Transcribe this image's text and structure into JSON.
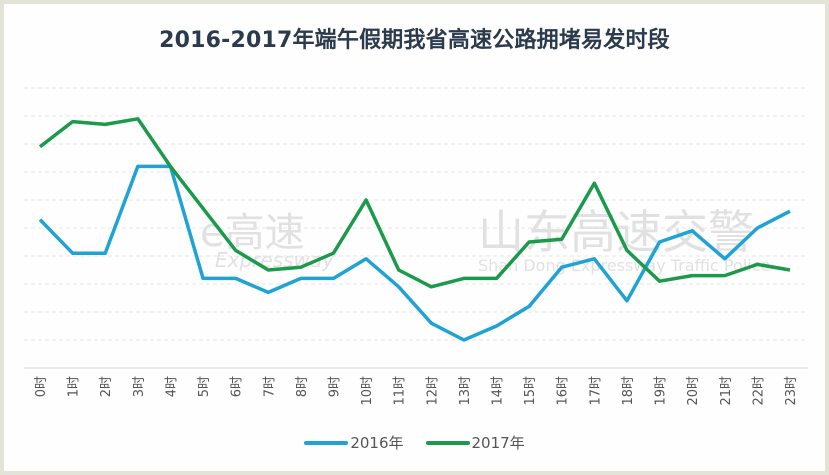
{
  "title": "2016-2017年端午假期我省高速公路拥堵易发时段",
  "watermarks": {
    "left_main": "e高速",
    "left_sub": "Expressway",
    "right_main": "山东高速交警",
    "right_sub": "Shan Dong Expressway Traffic Police"
  },
  "legend": [
    {
      "label": "2016年",
      "color": "#1fa3d4"
    },
    {
      "label": "2017年",
      "color": "#1a9a4a"
    }
  ],
  "chart_data": {
    "type": "line",
    "title": "2016-2017年端午假期我省高速公路拥堵易发时段",
    "xlabel": "",
    "ylabel": "",
    "y_tick_labels_shown": false,
    "grid": "horizontal dashed",
    "legend_position": "bottom",
    "ylim": [
      0,
      10
    ],
    "categories": [
      "0时",
      "1时",
      "2时",
      "3时",
      "4时",
      "5时",
      "6时",
      "7时",
      "8时",
      "9时",
      "10时",
      "11时",
      "12时",
      "13时",
      "14时",
      "15时",
      "16时",
      "17时",
      "18时",
      "19时",
      "20时",
      "21时",
      "22时",
      "23时"
    ],
    "series": [
      {
        "name": "2016年",
        "color": "#1fa3d4",
        "values": [
          5.3,
          4.1,
          4.1,
          7.2,
          7.2,
          3.2,
          3.2,
          2.7,
          3.2,
          3.2,
          3.9,
          2.9,
          1.6,
          1.0,
          1.5,
          2.2,
          3.6,
          3.9,
          2.4,
          4.5,
          4.9,
          3.9,
          5.0,
          5.6
        ]
      },
      {
        "name": "2017年",
        "color": "#1a9a4a",
        "values": [
          7.9,
          8.8,
          8.7,
          8.9,
          7.2,
          5.7,
          4.2,
          3.5,
          3.6,
          4.1,
          6.0,
          3.5,
          2.9,
          3.2,
          3.2,
          4.5,
          4.6,
          6.6,
          4.2,
          3.1,
          3.3,
          3.3,
          3.7,
          3.5
        ]
      }
    ]
  }
}
